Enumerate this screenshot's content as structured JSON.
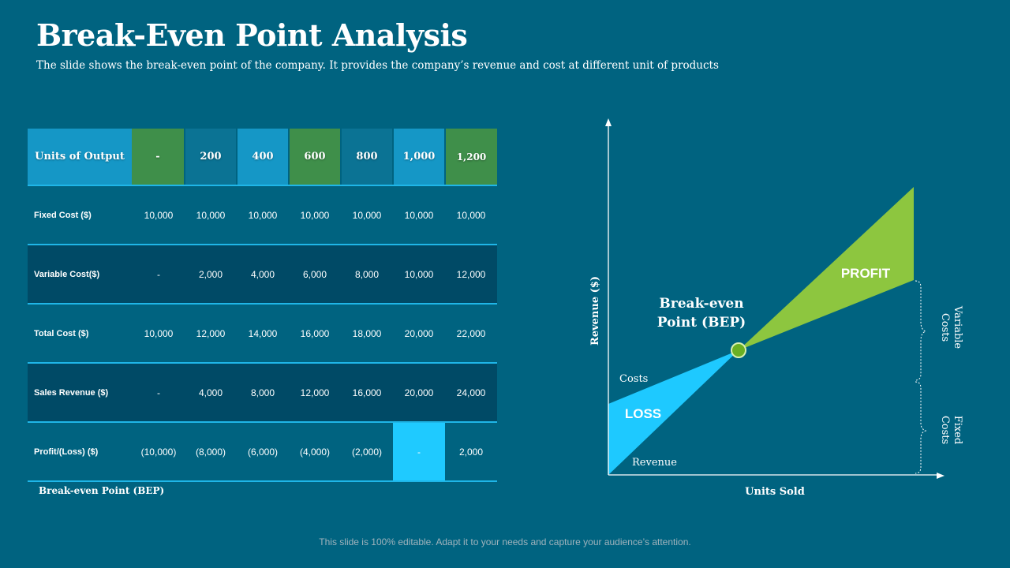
{
  "slide": {
    "title": "Break-Even Point Analysis",
    "subtitle": "The slide shows the break-even point of the company. It provides the company’s revenue and cost at different unit of products",
    "footer": "This slide is 100% editable. Adapt it to your needs and capture your audience’s attention."
  },
  "table": {
    "header_label": "Units of Output",
    "units": [
      "-",
      "200",
      "400",
      "600",
      "800",
      "1,000",
      "1,200"
    ],
    "rows": [
      {
        "label": "Fixed Cost ($)",
        "values": [
          "10,000",
          "10,000",
          "10,000",
          "10,000",
          "10,000",
          "10,000",
          "10,000"
        ]
      },
      {
        "label": "Variable Cost($)",
        "values": [
          "-",
          "2,000",
          "4,000",
          "6,000",
          "8,000",
          "10,000",
          "12,000"
        ]
      },
      {
        "label": "Total Cost ($)",
        "values": [
          "10,000",
          "12,000",
          "14,000",
          "16,000",
          "18,000",
          "20,000",
          "22,000"
        ]
      },
      {
        "label": "Sales Revenue ($)",
        "values": [
          "-",
          "4,000",
          "8,000",
          "12,000",
          "16,000",
          "20,000",
          "24,000"
        ]
      },
      {
        "label": "Profit/(Loss) ($)",
        "values": [
          "(10,000)",
          "(8,000)",
          "(6,000)",
          "(4,000)",
          "(2,000)",
          "-",
          "2,000"
        ]
      }
    ],
    "bep_note": "Break-even Point (BEP)",
    "colors": {
      "green": "#3f8f4a",
      "teal": "#0b7394",
      "blue": "#1597c6",
      "highlight": "#1fcaff",
      "row_dark": "#004a66"
    }
  },
  "diagram": {
    "y_axis_label": "Revenue ($)",
    "x_axis_label": "Units Sold",
    "bep_label_line1": "Break-even",
    "bep_label_line2": "Point (BEP)",
    "profit_label": "PROFIT",
    "loss_label": "LOSS",
    "costs_label": "Costs",
    "revenue_label": "Revenue",
    "variable_costs_line1": "Variable",
    "variable_costs_line2": "Costs",
    "fixed_costs_line1": "Fixed",
    "fixed_costs_line2": "Costs",
    "colors": {
      "profit": "#8dc63f",
      "loss": "#1ec9ff",
      "bep_point": "#6ab023"
    }
  }
}
